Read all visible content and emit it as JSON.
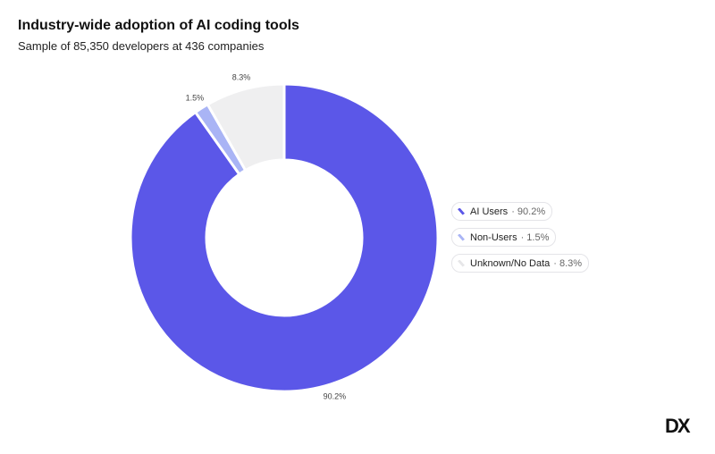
{
  "chart_data": {
    "type": "pie",
    "title": "Industry-wide adoption of AI coding tools",
    "subtitle": "Sample of 85,350 developers at 436 companies",
    "series": [
      {
        "name": "AI Users",
        "value": 90.2,
        "label": "90.2%",
        "color": "#5b57e8"
      },
      {
        "name": "Non-Users",
        "value": 1.5,
        "label": "1.5%",
        "color": "#a9b4f5"
      },
      {
        "name": "Unknown/No Data",
        "value": 8.3,
        "label": "8.3%",
        "color": "#efeff0"
      }
    ],
    "legend_position": "right",
    "legend": [
      {
        "label": "AI Users",
        "pct": "· 90.2%"
      },
      {
        "label": "Non-Users",
        "pct": "· 1.5%"
      },
      {
        "label": "Unknown/No Data",
        "pct": "· 8.3%"
      }
    ]
  },
  "logo": "DX"
}
